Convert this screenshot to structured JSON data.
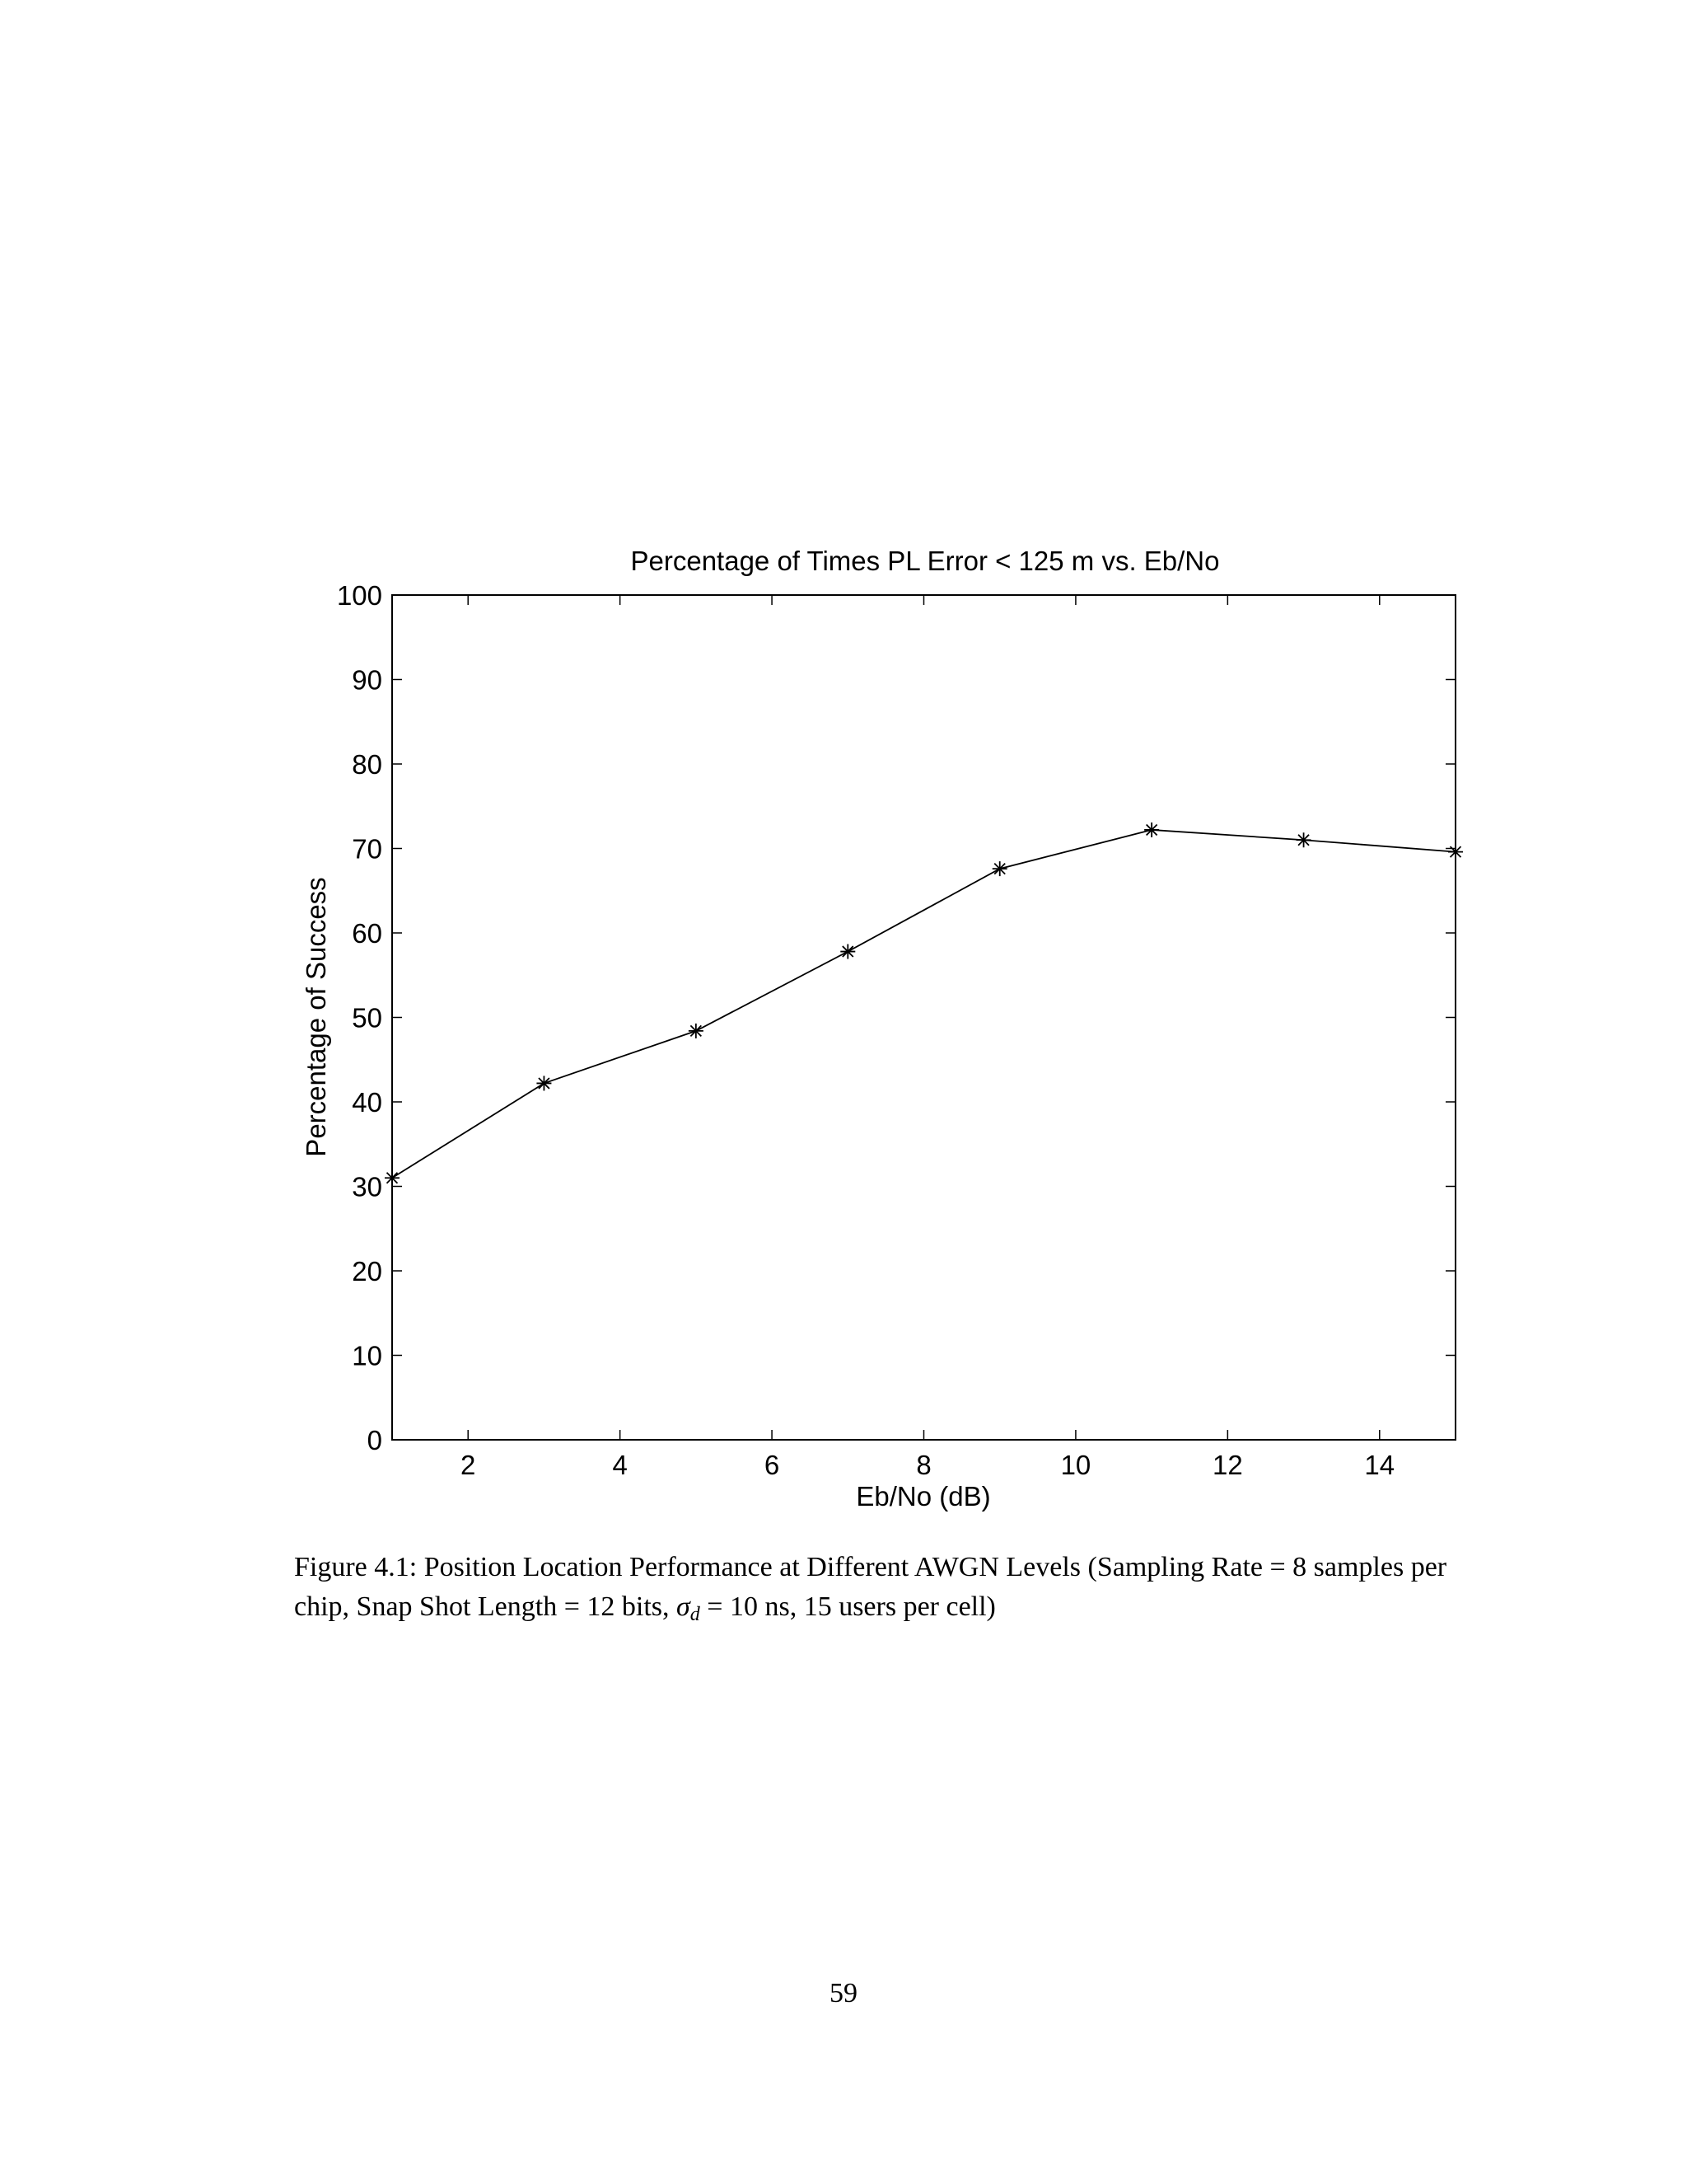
{
  "chart_data": {
    "type": "line",
    "title": "Percentage of Times PL Error < 125 m vs. Eb/No",
    "xlabel": "Eb/No (dB)",
    "ylabel": "Percentage of Success",
    "xlim": [
      1,
      15
    ],
    "ylim": [
      0,
      100
    ],
    "xticks": [
      2,
      4,
      6,
      8,
      10,
      12,
      14
    ],
    "yticks": [
      0,
      10,
      20,
      30,
      40,
      50,
      60,
      70,
      80,
      90,
      100
    ],
    "grid": false,
    "marker": "asterisk",
    "line_color": "#000000",
    "series": [
      {
        "x": [
          1,
          3,
          5,
          7,
          9,
          11,
          13,
          15
        ],
        "values": [
          31.0,
          42.2,
          48.4,
          57.8,
          67.6,
          72.2,
          71.0,
          69.6
        ]
      }
    ]
  },
  "caption": {
    "part1": "Figure 4.1: Position Location Performance at Different AWGN Levels (Sampling Rate = 8 samples per chip, Snap Shot Length = 12 bits, ",
    "sigma": "σ",
    "sigma_sub": "d",
    "part2": " = 10 ns, 15 users per cell)"
  },
  "page_number": "59"
}
